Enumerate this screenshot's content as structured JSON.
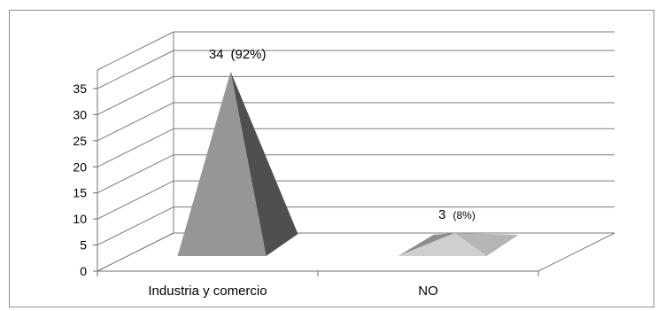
{
  "chart_data": {
    "type": "bar",
    "style": "3d-pyramid",
    "categories": [
      "Industria y comercio",
      "NO"
    ],
    "values": [
      34,
      3
    ],
    "value_labels": [
      "34",
      "3"
    ],
    "percent_labels": [
      "(92%)",
      "(8%)"
    ],
    "ylim": [
      0,
      35
    ],
    "yticks": [
      0,
      5,
      10,
      15,
      20,
      25,
      30,
      35
    ],
    "grid": true,
    "legend": "none",
    "title": "",
    "xlabel": "",
    "ylabel": "",
    "colors": {
      "front": "#969696",
      "side": "#4f4f4f",
      "small_front": "#cfcfcf",
      "small_left": "#8e8e8e",
      "small_right": "#b5b5b5",
      "grid": "#7a7a7a"
    }
  }
}
